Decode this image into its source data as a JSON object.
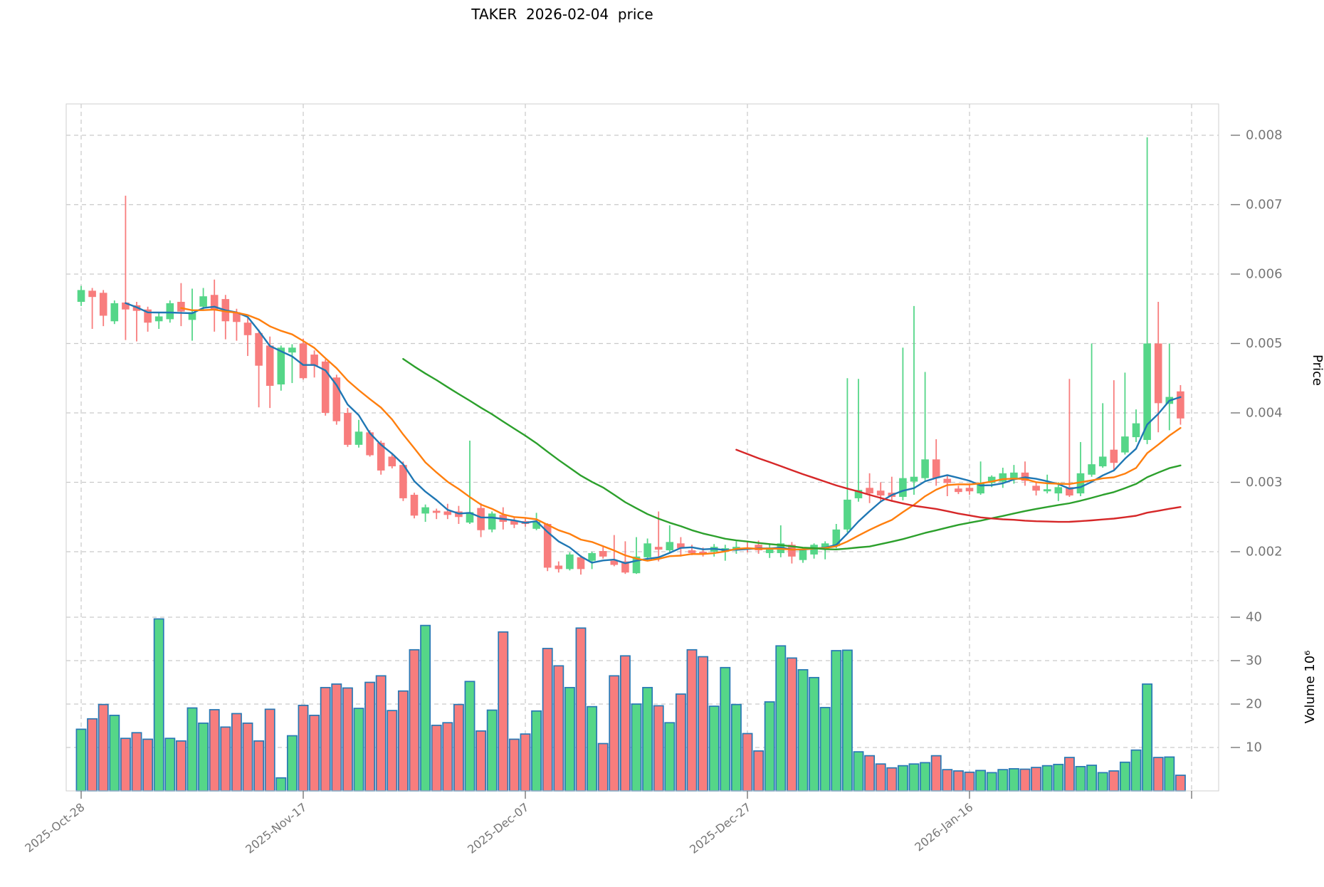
{
  "title": "TAKER  2026-02-04  price",
  "chart_data": {
    "type": "candlestick+volume",
    "title": "TAKER  2026-02-04  price",
    "ylabel_price": "Price",
    "ylabel_volume": "Volume  10⁶",
    "grid": true,
    "price_axis": {
      "min": 0.0016,
      "max": 0.0082,
      "tick_labels": [
        "0.002",
        "0.003",
        "0.004",
        "0.005",
        "0.006",
        "0.007",
        "0.008"
      ],
      "tick_values": [
        0.002,
        0.003,
        0.004,
        0.005,
        0.006,
        0.007,
        0.008
      ],
      "side": "right"
    },
    "volume_axis": {
      "min": 0,
      "max": 42,
      "unit": "millions",
      "tick_labels": [
        "10",
        "20",
        "30",
        "40"
      ],
      "tick_values": [
        10,
        20,
        30,
        40
      ],
      "side": "right"
    },
    "x_tick_labels": [
      "2025-Oct-28",
      "2025-Nov-17",
      "2025-Dec-07",
      "2025-Dec-27",
      "2026-Jan-16"
    ],
    "x_tick_indices": [
      0,
      20,
      40,
      60,
      80
    ],
    "moving_averages": [
      {
        "name": "MA5",
        "window": 5,
        "color": "#1f77b4"
      },
      {
        "name": "MA10",
        "window": 10,
        "color": "#ff7f0e"
      },
      {
        "name": "MA30",
        "window": 30,
        "color": "#2ca02c"
      },
      {
        "name": "MA60",
        "window": 60,
        "color": "#d62728"
      }
    ],
    "colors": {
      "up": "#55d688",
      "down": "#f87d7d",
      "volume_bar_edge": "#2878b5",
      "grid": "#c9c9c9",
      "spine": "#cfcfcf",
      "tick_text": "#767676",
      "label_text": "#000000"
    },
    "ohlcv_columns": [
      "date",
      "open",
      "high",
      "low",
      "close",
      "volume_millions"
    ],
    "ohlcv": [
      [
        "2025-10-28",
        0.0056,
        0.00583,
        0.00554,
        0.00577,
        14.2
      ],
      [
        "2025-10-29",
        0.00576,
        0.0058,
        0.00521,
        0.00567,
        16.6
      ],
      [
        "2025-10-30",
        0.00573,
        0.00577,
        0.00525,
        0.0054,
        19.9
      ],
      [
        "2025-10-31",
        0.00532,
        0.00562,
        0.00528,
        0.00558,
        17.4
      ],
      [
        "2025-11-01",
        0.00559,
        0.00713,
        0.00505,
        0.00549,
        12.1
      ],
      [
        "2025-11-02",
        0.00555,
        0.0056,
        0.00503,
        0.00547,
        13.4
      ],
      [
        "2025-11-03",
        0.00549,
        0.00553,
        0.00517,
        0.0053,
        11.9
      ],
      [
        "2025-11-04",
        0.00532,
        0.00545,
        0.00521,
        0.00539,
        39.6
      ],
      [
        "2025-11-05",
        0.00535,
        0.00562,
        0.0053,
        0.00558,
        12.1
      ],
      [
        "2025-11-06",
        0.0056,
        0.00587,
        0.00525,
        0.00546,
        11.5
      ],
      [
        "2025-11-07",
        0.00534,
        0.00579,
        0.00504,
        0.00545,
        19.1
      ],
      [
        "2025-11-08",
        0.00553,
        0.0058,
        0.00548,
        0.00568,
        15.6
      ],
      [
        "2025-11-09",
        0.0057,
        0.00592,
        0.00517,
        0.00548,
        18.7
      ],
      [
        "2025-11-10",
        0.00564,
        0.0057,
        0.00506,
        0.00532,
        14.7
      ],
      [
        "2025-11-11",
        0.00545,
        0.0055,
        0.00504,
        0.00531,
        17.8
      ],
      [
        "2025-11-12",
        0.0053,
        0.00537,
        0.00482,
        0.00512,
        15.6
      ],
      [
        "2025-11-13",
        0.00515,
        0.0052,
        0.00408,
        0.00468,
        11.5
      ],
      [
        "2025-11-14",
        0.00497,
        0.0051,
        0.00407,
        0.00439,
        18.8
      ],
      [
        "2025-11-15",
        0.00441,
        0.00497,
        0.00432,
        0.00494,
        3.0
      ],
      [
        "2025-11-16",
        0.00487,
        0.00499,
        0.00443,
        0.00494,
        12.7
      ],
      [
        "2025-11-17",
        0.005,
        0.00507,
        0.00448,
        0.0045,
        19.7
      ],
      [
        "2025-11-18",
        0.00484,
        0.0049,
        0.00451,
        0.00468,
        17.4
      ],
      [
        "2025-11-19",
        0.00474,
        0.00477,
        0.00396,
        0.004,
        23.8
      ],
      [
        "2025-11-20",
        0.00451,
        0.00455,
        0.00383,
        0.00388,
        24.6
      ],
      [
        "2025-11-21",
        0.004,
        0.00407,
        0.00351,
        0.00354,
        23.7
      ],
      [
        "2025-11-22",
        0.00354,
        0.0039,
        0.0035,
        0.00373,
        19.0
      ],
      [
        "2025-11-23",
        0.00372,
        0.00375,
        0.00337,
        0.00339,
        25.0
      ],
      [
        "2025-11-24",
        0.00357,
        0.0036,
        0.00311,
        0.00317,
        26.5
      ],
      [
        "2025-11-25",
        0.00337,
        0.00342,
        0.0032,
        0.00323,
        18.5
      ],
      [
        "2025-11-26",
        0.00325,
        0.0033,
        0.00273,
        0.00277,
        23.0
      ],
      [
        "2025-11-27",
        0.00282,
        0.00285,
        0.00248,
        0.00252,
        32.5
      ],
      [
        "2025-11-28",
        0.00255,
        0.00268,
        0.00243,
        0.00264,
        38.1
      ],
      [
        "2025-11-29",
        0.00259,
        0.00262,
        0.00247,
        0.00256,
        15.1
      ],
      [
        "2025-11-30",
        0.00258,
        0.00269,
        0.00247,
        0.00253,
        15.7
      ],
      [
        "2025-12-01",
        0.00258,
        0.00266,
        0.0024,
        0.0025,
        19.9
      ],
      [
        "2025-12-02",
        0.00242,
        0.0036,
        0.0024,
        0.00257,
        25.2
      ],
      [
        "2025-12-03",
        0.00263,
        0.0027,
        0.00221,
        0.00231,
        13.8
      ],
      [
        "2025-12-04",
        0.00232,
        0.00258,
        0.00228,
        0.00255,
        18.6
      ],
      [
        "2025-12-05",
        0.00253,
        0.00264,
        0.00232,
        0.00243,
        36.6
      ],
      [
        "2025-12-06",
        0.00245,
        0.0025,
        0.00234,
        0.00239,
        11.9
      ],
      [
        "2025-12-07",
        0.00244,
        0.00249,
        0.00236,
        0.0024,
        13.1
      ],
      [
        "2025-12-08",
        0.00233,
        0.00256,
        0.00231,
        0.00243,
        18.4
      ],
      [
        "2025-12-09",
        0.0024,
        0.00241,
        0.00172,
        0.00177,
        32.8
      ],
      [
        "2025-12-10",
        0.0018,
        0.00186,
        0.0017,
        0.00175,
        28.8
      ],
      [
        "2025-12-11",
        0.00175,
        0.00199,
        0.00173,
        0.00196,
        23.8
      ],
      [
        "2025-12-12",
        0.00192,
        0.00195,
        0.00167,
        0.00175,
        37.5
      ],
      [
        "2025-12-13",
        0.00187,
        0.002,
        0.00175,
        0.00198,
        19.4
      ],
      [
        "2025-12-14",
        0.00201,
        0.00207,
        0.0019,
        0.00193,
        10.9
      ],
      [
        "2025-12-15",
        0.00187,
        0.00224,
        0.00179,
        0.00181,
        26.5
      ],
      [
        "2025-12-16",
        0.00186,
        0.00215,
        0.00168,
        0.0017,
        31.1
      ],
      [
        "2025-12-17",
        0.00169,
        0.00221,
        0.00168,
        0.00193,
        20.0
      ],
      [
        "2025-12-18",
        0.00192,
        0.00219,
        0.00188,
        0.00212,
        23.8
      ],
      [
        "2025-12-19",
        0.00207,
        0.00258,
        0.00186,
        0.00203,
        19.6
      ],
      [
        "2025-12-20",
        0.00202,
        0.00238,
        0.00199,
        0.00214,
        15.7
      ],
      [
        "2025-12-21",
        0.00212,
        0.00221,
        0.00193,
        0.00205,
        22.3
      ],
      [
        "2025-12-22",
        0.00202,
        0.0021,
        0.00195,
        0.00198,
        32.5
      ],
      [
        "2025-12-23",
        0.002,
        0.00206,
        0.00193,
        0.00197,
        30.9
      ],
      [
        "2025-12-24",
        0.002,
        0.00211,
        0.00193,
        0.00207,
        19.5
      ],
      [
        "2025-12-25",
        0.002,
        0.0021,
        0.00187,
        0.00205,
        28.4
      ],
      [
        "2025-12-26",
        0.00202,
        0.00215,
        0.00197,
        0.00207,
        19.9
      ],
      [
        "2025-12-27",
        0.00205,
        0.00214,
        0.00199,
        0.00203,
        13.2
      ],
      [
        "2025-12-28",
        0.0021,
        0.00216,
        0.00197,
        0.00202,
        9.2
      ],
      [
        "2025-12-29",
        0.00198,
        0.0021,
        0.00191,
        0.00206,
        20.5
      ],
      [
        "2025-12-30",
        0.00198,
        0.00238,
        0.00192,
        0.00212,
        33.4
      ],
      [
        "2025-12-31",
        0.0021,
        0.00214,
        0.00183,
        0.00193,
        30.6
      ],
      [
        "2026-01-01",
        0.00188,
        0.00205,
        0.00184,
        0.00202,
        27.9
      ],
      [
        "2026-01-02",
        0.00196,
        0.00212,
        0.0019,
        0.0021,
        26.1
      ],
      [
        "2026-01-03",
        0.00205,
        0.00215,
        0.00189,
        0.00212,
        19.2
      ],
      [
        "2026-01-04",
        0.00208,
        0.0024,
        0.00205,
        0.00232,
        32.3
      ],
      [
        "2026-01-05",
        0.00232,
        0.0045,
        0.00228,
        0.00275,
        32.4
      ],
      [
        "2026-01-06",
        0.00277,
        0.00449,
        0.00272,
        0.00289,
        9.0
      ],
      [
        "2026-01-07",
        0.00292,
        0.00313,
        0.0027,
        0.00284,
        8.1
      ],
      [
        "2026-01-08",
        0.00288,
        0.003,
        0.00273,
        0.00281,
        6.2
      ],
      [
        "2026-01-09",
        0.00285,
        0.00308,
        0.00272,
        0.00279,
        5.3
      ],
      [
        "2026-01-10",
        0.00279,
        0.00494,
        0.00274,
        0.00306,
        5.8
      ],
      [
        "2026-01-11",
        0.00301,
        0.00554,
        0.00282,
        0.00308,
        6.2
      ],
      [
        "2026-01-12",
        0.00306,
        0.00459,
        0.00303,
        0.00333,
        6.5
      ],
      [
        "2026-01-13",
        0.00333,
        0.00362,
        0.00295,
        0.00306,
        8.1
      ],
      [
        "2026-01-14",
        0.00305,
        0.0031,
        0.0028,
        0.00299,
        4.9
      ],
      [
        "2026-01-15",
        0.00291,
        0.00295,
        0.00283,
        0.00286,
        4.6
      ],
      [
        "2026-01-16",
        0.00292,
        0.00298,
        0.00282,
        0.00287,
        4.3
      ],
      [
        "2026-01-17",
        0.00284,
        0.0033,
        0.00282,
        0.00299,
        4.7
      ],
      [
        "2026-01-18",
        0.00299,
        0.0031,
        0.00293,
        0.00308,
        4.2
      ],
      [
        "2026-01-19",
        0.00301,
        0.00321,
        0.00292,
        0.00313,
        4.9
      ],
      [
        "2026-01-20",
        0.00304,
        0.00325,
        0.00298,
        0.00314,
        5.1
      ],
      [
        "2026-01-21",
        0.00314,
        0.0033,
        0.00295,
        0.00302,
        5.0
      ],
      [
        "2026-01-22",
        0.00295,
        0.003,
        0.00281,
        0.00288,
        5.4
      ],
      [
        "2026-01-23",
        0.00287,
        0.00311,
        0.00284,
        0.0029,
        5.8
      ],
      [
        "2026-01-24",
        0.00284,
        0.003,
        0.00273,
        0.00293,
        6.1
      ],
      [
        "2026-01-25",
        0.00293,
        0.00449,
        0.00279,
        0.00281,
        7.7
      ],
      [
        "2026-01-26",
        0.00284,
        0.00358,
        0.0028,
        0.00313,
        5.6
      ],
      [
        "2026-01-27",
        0.00311,
        0.005,
        0.00308,
        0.00326,
        5.9
      ],
      [
        "2026-01-28",
        0.00323,
        0.00414,
        0.00321,
        0.00337,
        4.2
      ],
      [
        "2026-01-29",
        0.00347,
        0.00447,
        0.00317,
        0.00328,
        4.6
      ],
      [
        "2026-01-30",
        0.00343,
        0.00458,
        0.0034,
        0.00366,
        6.6
      ],
      [
        "2026-01-31",
        0.00365,
        0.00405,
        0.00358,
        0.00385,
        9.4
      ],
      [
        "2026-02-01",
        0.00361,
        0.00797,
        0.00355,
        0.005,
        24.6
      ],
      [
        "2026-02-02",
        0.005,
        0.0056,
        0.00372,
        0.00414,
        7.7
      ],
      [
        "2026-02-03",
        0.00413,
        0.005,
        0.00375,
        0.00423,
        7.8
      ],
      [
        "2026-02-04",
        0.00431,
        0.0044,
        0.00383,
        0.00392,
        3.6
      ]
    ]
  }
}
